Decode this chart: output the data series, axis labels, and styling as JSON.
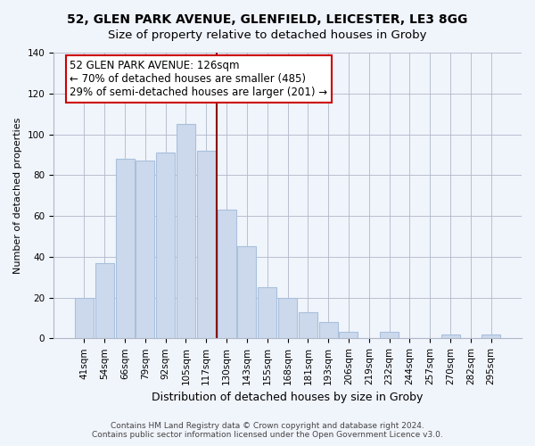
{
  "title": "52, GLEN PARK AVENUE, GLENFIELD, LEICESTER, LE3 8GG",
  "subtitle": "Size of property relative to detached houses in Groby",
  "xlabel": "Distribution of detached houses by size in Groby",
  "ylabel": "Number of detached properties",
  "bar_labels": [
    "41sqm",
    "54sqm",
    "66sqm",
    "79sqm",
    "92sqm",
    "105sqm",
    "117sqm",
    "130sqm",
    "143sqm",
    "155sqm",
    "168sqm",
    "181sqm",
    "193sqm",
    "206sqm",
    "219sqm",
    "232sqm",
    "244sqm",
    "257sqm",
    "270sqm",
    "282sqm",
    "295sqm"
  ],
  "bar_values": [
    20,
    37,
    88,
    87,
    91,
    105,
    92,
    63,
    45,
    25,
    20,
    13,
    8,
    3,
    0,
    3,
    0,
    0,
    2,
    0,
    2
  ],
  "bar_color": "#ccd9ec",
  "bar_edgecolor": "#a8c0dc",
  "vline_color": "#8b0000",
  "annotation_line1": "52 GLEN PARK AVENUE: 126sqm",
  "annotation_line2": "← 70% of detached houses are smaller (485)",
  "annotation_line3": "29% of semi-detached houses are larger (201) →",
  "annotation_box_edgecolor": "#cc0000",
  "annotation_box_facecolor": "#ffffff",
  "ylim": [
    0,
    140
  ],
  "yticks": [
    0,
    20,
    40,
    60,
    80,
    100,
    120,
    140
  ],
  "footer1": "Contains HM Land Registry data © Crown copyright and database right 2024.",
  "footer2": "Contains public sector information licensed under the Open Government Licence v3.0.",
  "title_fontsize": 10,
  "subtitle_fontsize": 9.5,
  "xlabel_fontsize": 9,
  "ylabel_fontsize": 8,
  "tick_fontsize": 7.5,
  "annotation_fontsize": 8.5,
  "footer_fontsize": 6.5,
  "background_color": "#f0f4fb"
}
